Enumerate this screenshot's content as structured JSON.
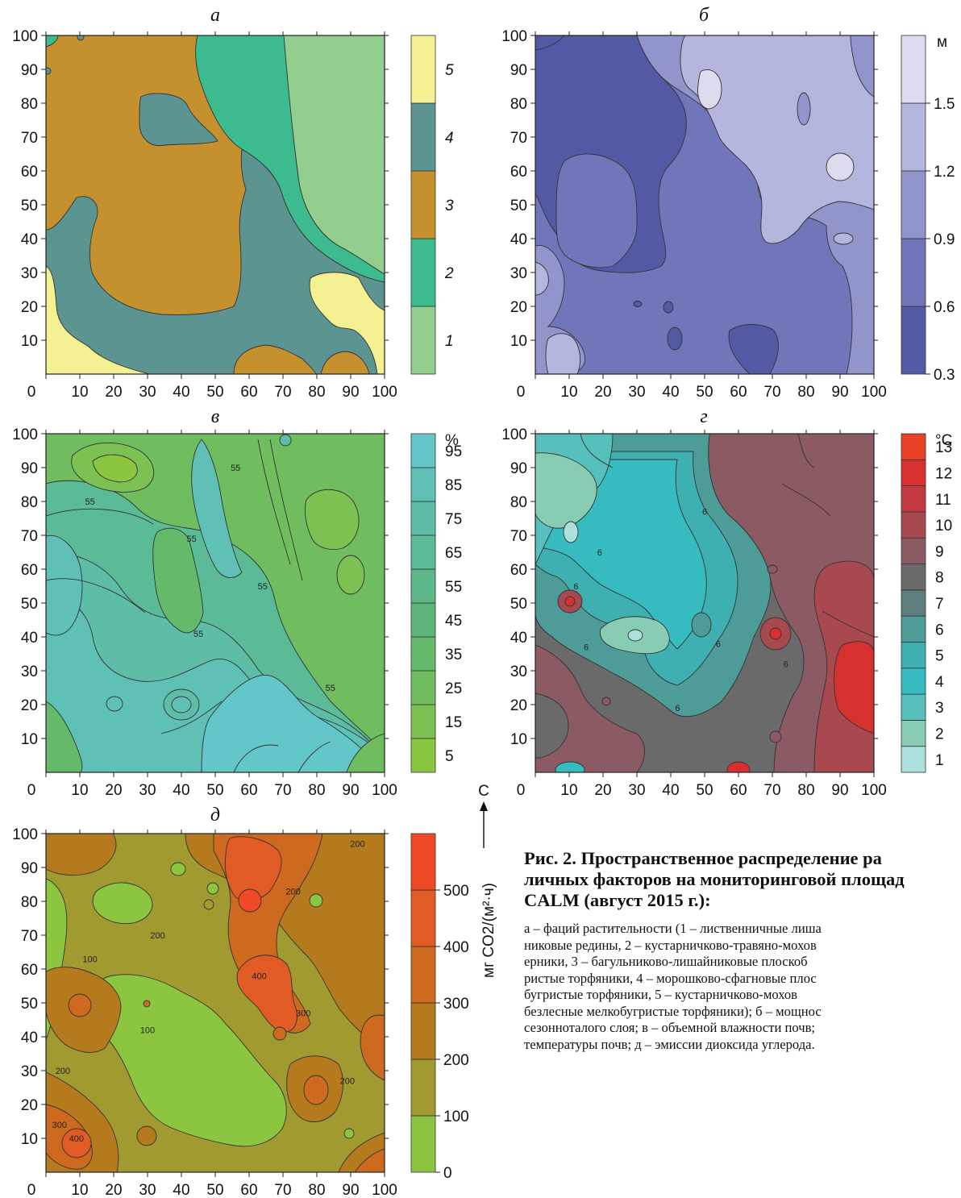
{
  "chart_data": [
    {
      "id": "a",
      "type": "heatmap",
      "title": "а",
      "x_ticks": [
        0,
        10,
        20,
        30,
        40,
        50,
        60,
        70,
        80,
        90,
        100
      ],
      "y_ticks": [
        10,
        20,
        30,
        40,
        50,
        60,
        70,
        80,
        90,
        100
      ],
      "xlim": [
        0,
        100
      ],
      "ylim": [
        0,
        100
      ],
      "colorbar": {
        "kind": "categorical",
        "classes": [
          {
            "label": "1",
            "color": "#94ce8e"
          },
          {
            "label": "2",
            "color": "#3bbb8e"
          },
          {
            "label": "3",
            "color": "#c5912f"
          },
          {
            "label": "4",
            "color": "#5c9491"
          },
          {
            "label": "5",
            "color": "#f4f192"
          }
        ]
      }
    },
    {
      "id": "b",
      "type": "heatmap",
      "title": "б",
      "x_ticks": [
        0,
        10,
        20,
        30,
        40,
        50,
        60,
        70,
        80,
        90,
        100
      ],
      "y_ticks": [
        10,
        20,
        30,
        40,
        50,
        60,
        70,
        80,
        90,
        100
      ],
      "xlim": [
        0,
        100
      ],
      "ylim": [
        0,
        100
      ],
      "colorbar": {
        "kind": "levels",
        "unit": "м",
        "levels": [
          0.3,
          0.6,
          0.9,
          1.2,
          1.5
        ],
        "colors": [
          "#5459a6",
          "#7176bb",
          "#9295cc",
          "#b4b6de",
          "#dcdcee"
        ]
      }
    },
    {
      "id": "v",
      "type": "heatmap",
      "title": "в",
      "x_ticks": [
        0,
        10,
        20,
        30,
        40,
        50,
        60,
        70,
        80,
        90,
        100
      ],
      "y_ticks": [
        10,
        20,
        30,
        40,
        50,
        60,
        70,
        80,
        90,
        100
      ],
      "xlim": [
        0,
        100
      ],
      "ylim": [
        0,
        100
      ],
      "contour_labels": [
        {
          "x": 13,
          "y": 80,
          "t": "55"
        },
        {
          "x": 43,
          "y": 69,
          "t": "55"
        },
        {
          "x": 56,
          "y": 90,
          "t": "55"
        },
        {
          "x": 64,
          "y": 55,
          "t": "55"
        },
        {
          "x": 45,
          "y": 41,
          "t": "55"
        },
        {
          "x": 84,
          "y": 25,
          "t": "55"
        }
      ],
      "colorbar": {
        "kind": "levels",
        "unit": "%",
        "levels": [
          5,
          15,
          25,
          35,
          45,
          55,
          65,
          75,
          85,
          95
        ],
        "colors": [
          "#8bc641",
          "#7dc152",
          "#6fbd5e",
          "#64b96b",
          "#5fb67a",
          "#5cb888",
          "#5cbb97",
          "#5ebda6",
          "#5fc1b6",
          "#63c6c8"
        ]
      }
    },
    {
      "id": "g",
      "type": "heatmap",
      "title": "г",
      "x_ticks": [
        0,
        10,
        20,
        30,
        40,
        50,
        60,
        70,
        80,
        90,
        100
      ],
      "y_ticks": [
        10,
        20,
        30,
        40,
        50,
        60,
        70,
        80,
        90,
        100
      ],
      "xlim": [
        0,
        100
      ],
      "ylim": [
        0,
        100
      ],
      "contour_labels": [
        {
          "x": 50,
          "y": 77,
          "t": "6"
        },
        {
          "x": 19,
          "y": 65,
          "t": "6"
        },
        {
          "x": 12,
          "y": 55,
          "t": "6"
        },
        {
          "x": 15,
          "y": 37,
          "t": "6"
        },
        {
          "x": 74,
          "y": 32,
          "t": "6"
        },
        {
          "x": 54,
          "y": 38,
          "t": "6"
        },
        {
          "x": 42,
          "y": 19,
          "t": "6"
        }
      ],
      "colorbar": {
        "kind": "levels",
        "unit": "°C",
        "levels": [
          1,
          2,
          3,
          4,
          5,
          6,
          7,
          8,
          9,
          10,
          11,
          12,
          13
        ],
        "colors": [
          "#ade0dc",
          "#88cdb3",
          "#56c0bd",
          "#36bcc0",
          "#3fb0b1",
          "#4e9c98",
          "#5d7e7c",
          "#6b6a6b",
          "#8b5a63",
          "#a8484f",
          "#c23a40",
          "#d8302f",
          "#e84128"
        ]
      }
    },
    {
      "id": "d",
      "type": "heatmap",
      "title": "д",
      "x_ticks": [
        0,
        10,
        20,
        30,
        40,
        50,
        60,
        70,
        80,
        90,
        100
      ],
      "y_ticks": [
        10,
        20,
        30,
        40,
        50,
        60,
        70,
        80,
        90,
        100
      ],
      "xlim": [
        0,
        100
      ],
      "ylim": [
        0,
        100
      ],
      "contour_labels": [
        {
          "x": 92,
          "y": 97,
          "t": "200"
        },
        {
          "x": 73,
          "y": 83,
          "t": "200"
        },
        {
          "x": 33,
          "y": 70,
          "t": "200"
        },
        {
          "x": 13,
          "y": 63,
          "t": "100"
        },
        {
          "x": 63,
          "y": 58,
          "t": "400"
        },
        {
          "x": 76,
          "y": 47,
          "t": "300"
        },
        {
          "x": 30,
          "y": 42,
          "t": "100"
        },
        {
          "x": 5,
          "y": 30,
          "t": "200"
        },
        {
          "x": 89,
          "y": 27,
          "t": "200"
        },
        {
          "x": 4,
          "y": 14,
          "t": "300"
        },
        {
          "x": 9,
          "y": 10,
          "t": "400"
        }
      ],
      "colorbar": {
        "kind": "levels",
        "unit": "мг CO2/(м²·ч)",
        "levels": [
          0,
          100,
          200,
          300,
          400,
          500
        ],
        "colors": [
          "#8cc641",
          "#a09a30",
          "#b57a1e",
          "#cd6a1f",
          "#e25a24",
          "#ef4a25"
        ]
      }
    }
  ],
  "north_arrow": {
    "label": "С"
  },
  "caption": {
    "title": "Рис. 2. Пространственное распределение ра\nличных факторов на мониторинговой площад\nCALM (август 2015 г.):",
    "text": "а – фаций растительности (1 – лиственничные лиша\nниковые редины, 2 – кустарничково-травяно-мохов\nерники, 3 – багульниково-лишайниковые плоскоб\nристые торфяники, 4 – морошково-сфагновые плос\nбугристые торфяники, 5 – кустарничково-мохов\nбезлесные мелкобугристые торфяники); б – мощнос\nсезонноталого слоя; в – объемной влажности почв;\nтемпературы почв; д – эмиссии диоксида углерода."
  }
}
